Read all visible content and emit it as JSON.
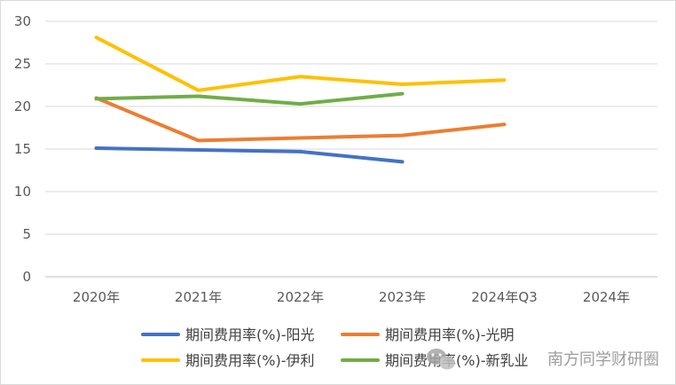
{
  "chart_data": {
    "type": "line",
    "categories": [
      "2020年",
      "2021年",
      "2022年",
      "2023年",
      "2024年Q3",
      "2024年"
    ],
    "ylim": [
      0,
      30
    ],
    "yticks": [
      "0",
      "5",
      "10",
      "15",
      "20",
      "25",
      "30"
    ],
    "grid": true,
    "legend_position": "bottom",
    "series": [
      {
        "name": "期间费用率(%)-阳光",
        "color": "#4472c4",
        "values": [
          15.1,
          14.9,
          14.7,
          13.5,
          null,
          null
        ]
      },
      {
        "name": "期间费用率(%)-光明",
        "color": "#ed7d31",
        "values": [
          21.0,
          16.0,
          16.3,
          16.6,
          17.9,
          null
        ]
      },
      {
        "name": "期间费用率(%)-伊利",
        "color": "#ffc000",
        "values": [
          28.1,
          21.9,
          23.5,
          22.6,
          23.1,
          null
        ]
      },
      {
        "name": "期间费用率(%)-新乳业",
        "color": "#70ad47",
        "values": [
          20.9,
          21.2,
          20.3,
          21.5,
          null,
          null
        ]
      }
    ]
  },
  "watermark": {
    "text": "南方同学财研圈",
    "icon": "wechat-icon"
  }
}
